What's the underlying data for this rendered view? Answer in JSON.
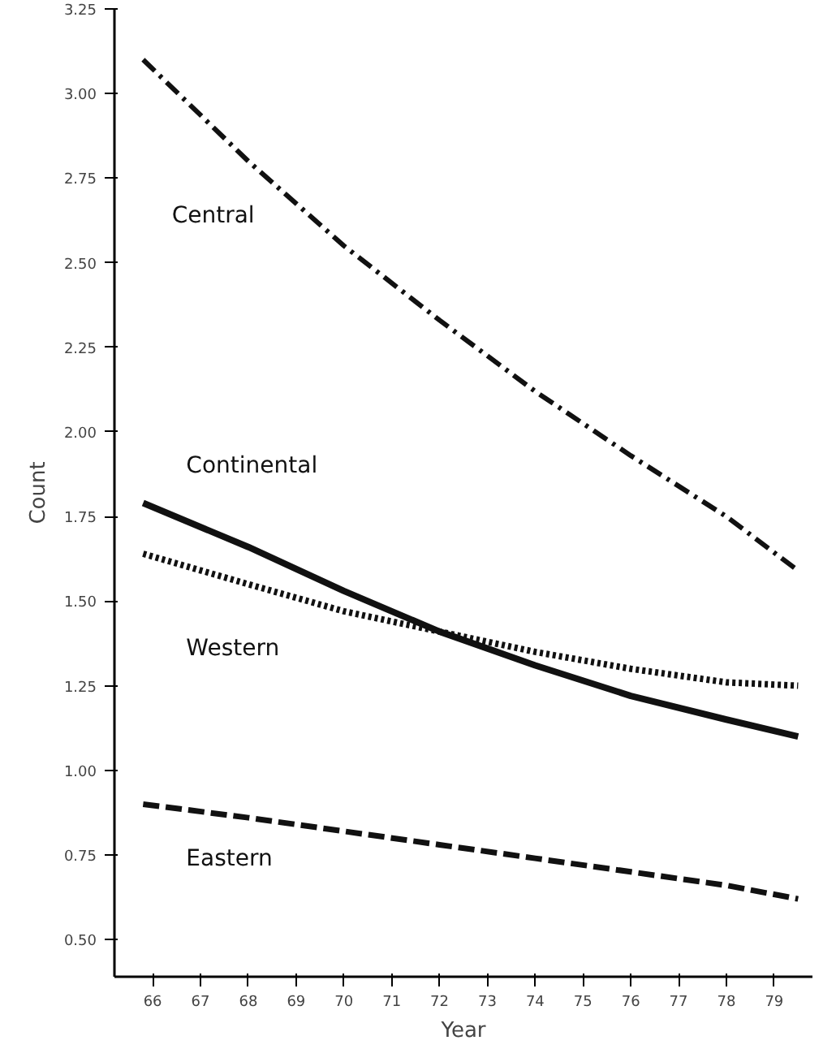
{
  "chart_data": {
    "type": "line",
    "xlabel": "Year",
    "ylabel": "Count",
    "x": [
      65.8,
      68,
      70,
      72,
      74,
      76,
      78,
      79.5
    ],
    "series": [
      {
        "name": "Central",
        "color": "#111111",
        "line_style": "dashdot",
        "values": [
          3.1,
          2.8,
          2.55,
          2.33,
          2.12,
          1.93,
          1.75,
          1.59
        ]
      },
      {
        "name": "Continental",
        "color": "#111111",
        "line_style": "solid",
        "values": [
          1.79,
          1.66,
          1.53,
          1.41,
          1.31,
          1.22,
          1.15,
          1.1
        ]
      },
      {
        "name": "Western",
        "color": "#111111",
        "line_style": "dotted",
        "values": [
          1.64,
          1.55,
          1.47,
          1.41,
          1.35,
          1.3,
          1.26,
          1.25
        ]
      },
      {
        "name": "Eastern",
        "color": "#111111",
        "line_style": "dashed",
        "values": [
          0.9,
          0.86,
          0.82,
          0.78,
          0.74,
          0.7,
          0.66,
          0.62
        ]
      }
    ],
    "xlim": [
      65.2,
      79.8
    ],
    "ylim": [
      0.39,
      3.25
    ],
    "xticks": [
      66,
      67,
      68,
      69,
      70,
      71,
      72,
      73,
      74,
      75,
      76,
      77,
      78,
      79
    ],
    "yticks": [
      {
        "value": 0.5,
        "label": "0.50"
      },
      {
        "value": 0.75,
        "label": "0.75"
      },
      {
        "value": 1.0,
        "label": "1.00"
      },
      {
        "value": 1.25,
        "label": "1.25"
      },
      {
        "value": 1.5,
        "label": "1.50"
      },
      {
        "value": 1.75,
        "label": "1.75"
      },
      {
        "value": 2.0,
        "label": "2.00"
      },
      {
        "value": 2.25,
        "label": "2.25"
      },
      {
        "value": 2.5,
        "label": "2.50"
      },
      {
        "value": 2.75,
        "label": "2.75"
      },
      {
        "value": 3.0,
        "label": "3.00"
      },
      {
        "value": 3.25,
        "label": "3.25"
      }
    ],
    "grid": false,
    "marker": "none"
  }
}
